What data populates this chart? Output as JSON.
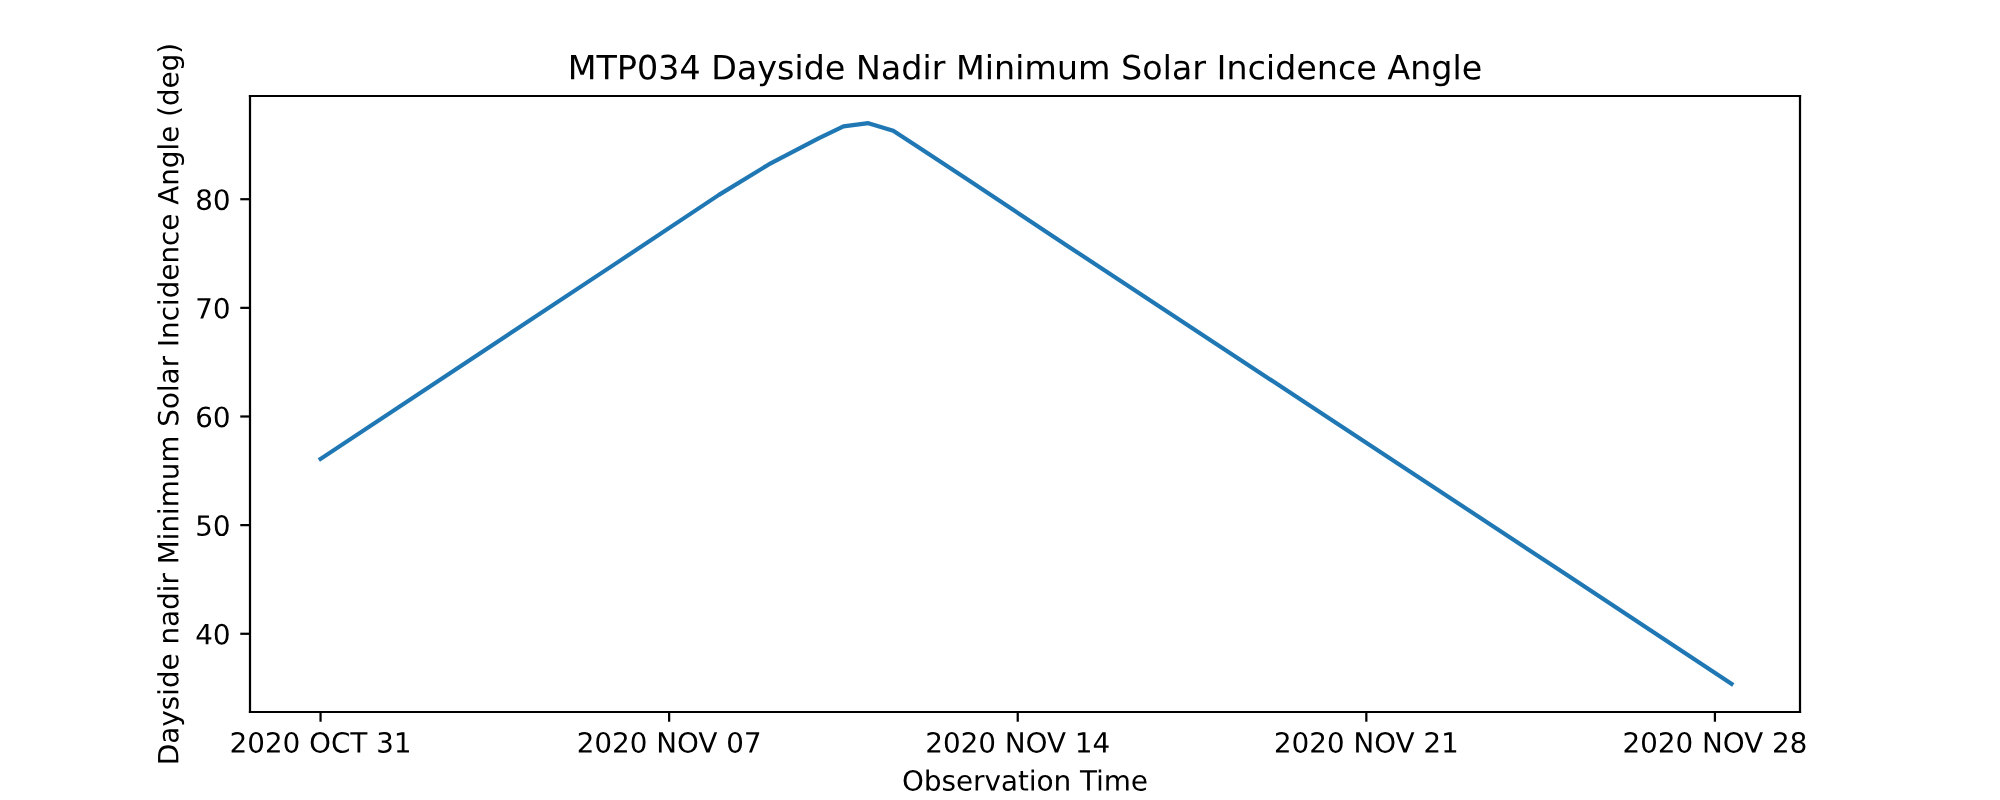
{
  "chart_data": {
    "type": "line",
    "title": "MTP034 Dayside Nadir Minimum Solar Incidence Angle",
    "xlabel": "Observation Time",
    "ylabel": "Dayside nadir Minimum Solar Incidence Angle (deg)",
    "x": [
      "2020-10-31T00:00",
      "2020-11-03T00:00",
      "2020-11-06T00:00",
      "2020-11-08T00:00",
      "2020-11-09T00:00",
      "2020-11-10T00:00",
      "2020-11-10T12:00",
      "2020-11-11T00:00",
      "2020-11-11T12:00",
      "2020-11-12T00:00",
      "2020-11-13T00:00",
      "2020-11-15T00:00",
      "2020-11-20T00:00",
      "2020-11-25T00:00",
      "2020-11-28T08:00"
    ],
    "series": [
      {
        "color": "#1f77b4",
        "values": [
          56.1,
          65.2,
          74.3,
          80.4,
          83.2,
          85.6,
          86.7,
          87.0,
          86.3,
          84.8,
          81.8,
          75.7,
          60.6,
          45.5,
          35.4
        ]
      }
    ],
    "xlim": [
      "2020-10-29T14:00",
      "2020-11-29T17:00"
    ],
    "xticks": [
      {
        "value": "2020-10-31",
        "label": "2020 OCT 31"
      },
      {
        "value": "2020-11-07",
        "label": "2020 NOV 07"
      },
      {
        "value": "2020-11-14",
        "label": "2020 NOV 14"
      },
      {
        "value": "2020-11-21",
        "label": "2020 NOV 21"
      },
      {
        "value": "2020-11-28",
        "label": "2020 NOV 28"
      }
    ],
    "ylim": [
      32.8,
      89.5
    ],
    "yticks": [
      40,
      50,
      60,
      70,
      80
    ],
    "grid": false,
    "legend": false
  }
}
